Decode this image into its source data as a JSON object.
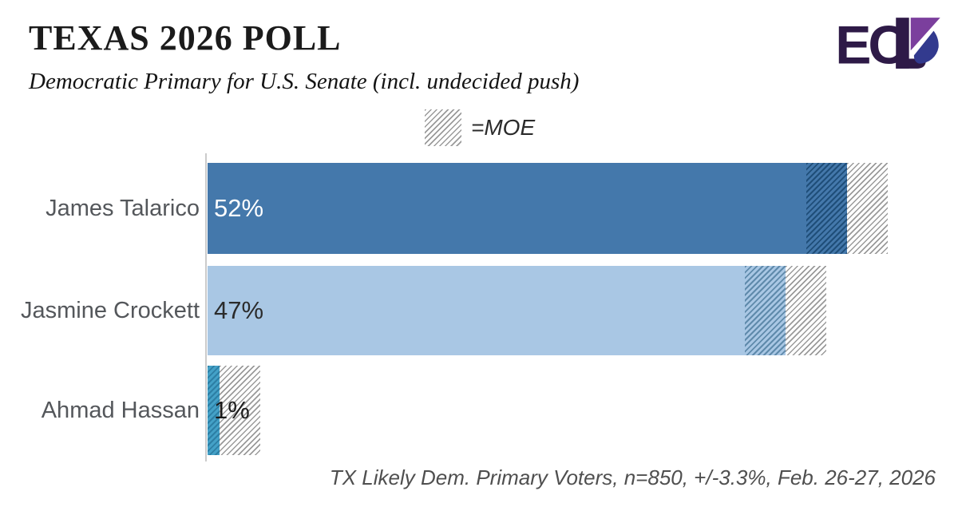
{
  "header": {
    "title": "TEXAS 2026 POLL",
    "subtitle": "Democratic Primary for U.S. Senate (incl. undecided push)",
    "logo_text": "EC",
    "logo_colors": {
      "dark": "#2e1a47",
      "purple": "#7b3f9d",
      "indigo": "#323a8e"
    }
  },
  "legend": {
    "label": "=MOE"
  },
  "footer": {
    "note": "TX Likely Dem. Primary Voters, n=850, +/-3.3%, Feb. 26-27, 2026"
  },
  "chart_data": {
    "type": "bar",
    "orientation": "horizontal",
    "title": "TEXAS 2026 POLL",
    "subtitle": "Democratic Primary for U.S. Senate (incl. undecided push)",
    "categories": [
      "James Talarico",
      "Jasmine Crockett",
      "Ahmad Hassan"
    ],
    "values": [
      52,
      47,
      1
    ],
    "value_labels": [
      "52%",
      "47%",
      "1%"
    ],
    "unit": "%",
    "moe_pct": 3.3,
    "sample_n": 850,
    "legend_label": "=MOE",
    "footnote": "TX Likely Dem. Primary Voters, n=850, +/-3.3%, Feb. 26-27, 2026",
    "legend_position": "top-center",
    "grid": false,
    "xlim": [
      0,
      61
    ],
    "bar_colors": [
      "#4478ab",
      "#a9c7e4",
      "#44a1c7"
    ],
    "moe_hatch_line_colors": [
      "#1f4e79",
      "#5f8aab",
      "#2d7fa5"
    ],
    "moe_outer_hatch_line_color": "#9a9a9a",
    "value_label_colors": [
      "#ffffff",
      "#2b2b2b",
      "#1a1a1a"
    ],
    "axis_color": "#cbcbcb"
  }
}
